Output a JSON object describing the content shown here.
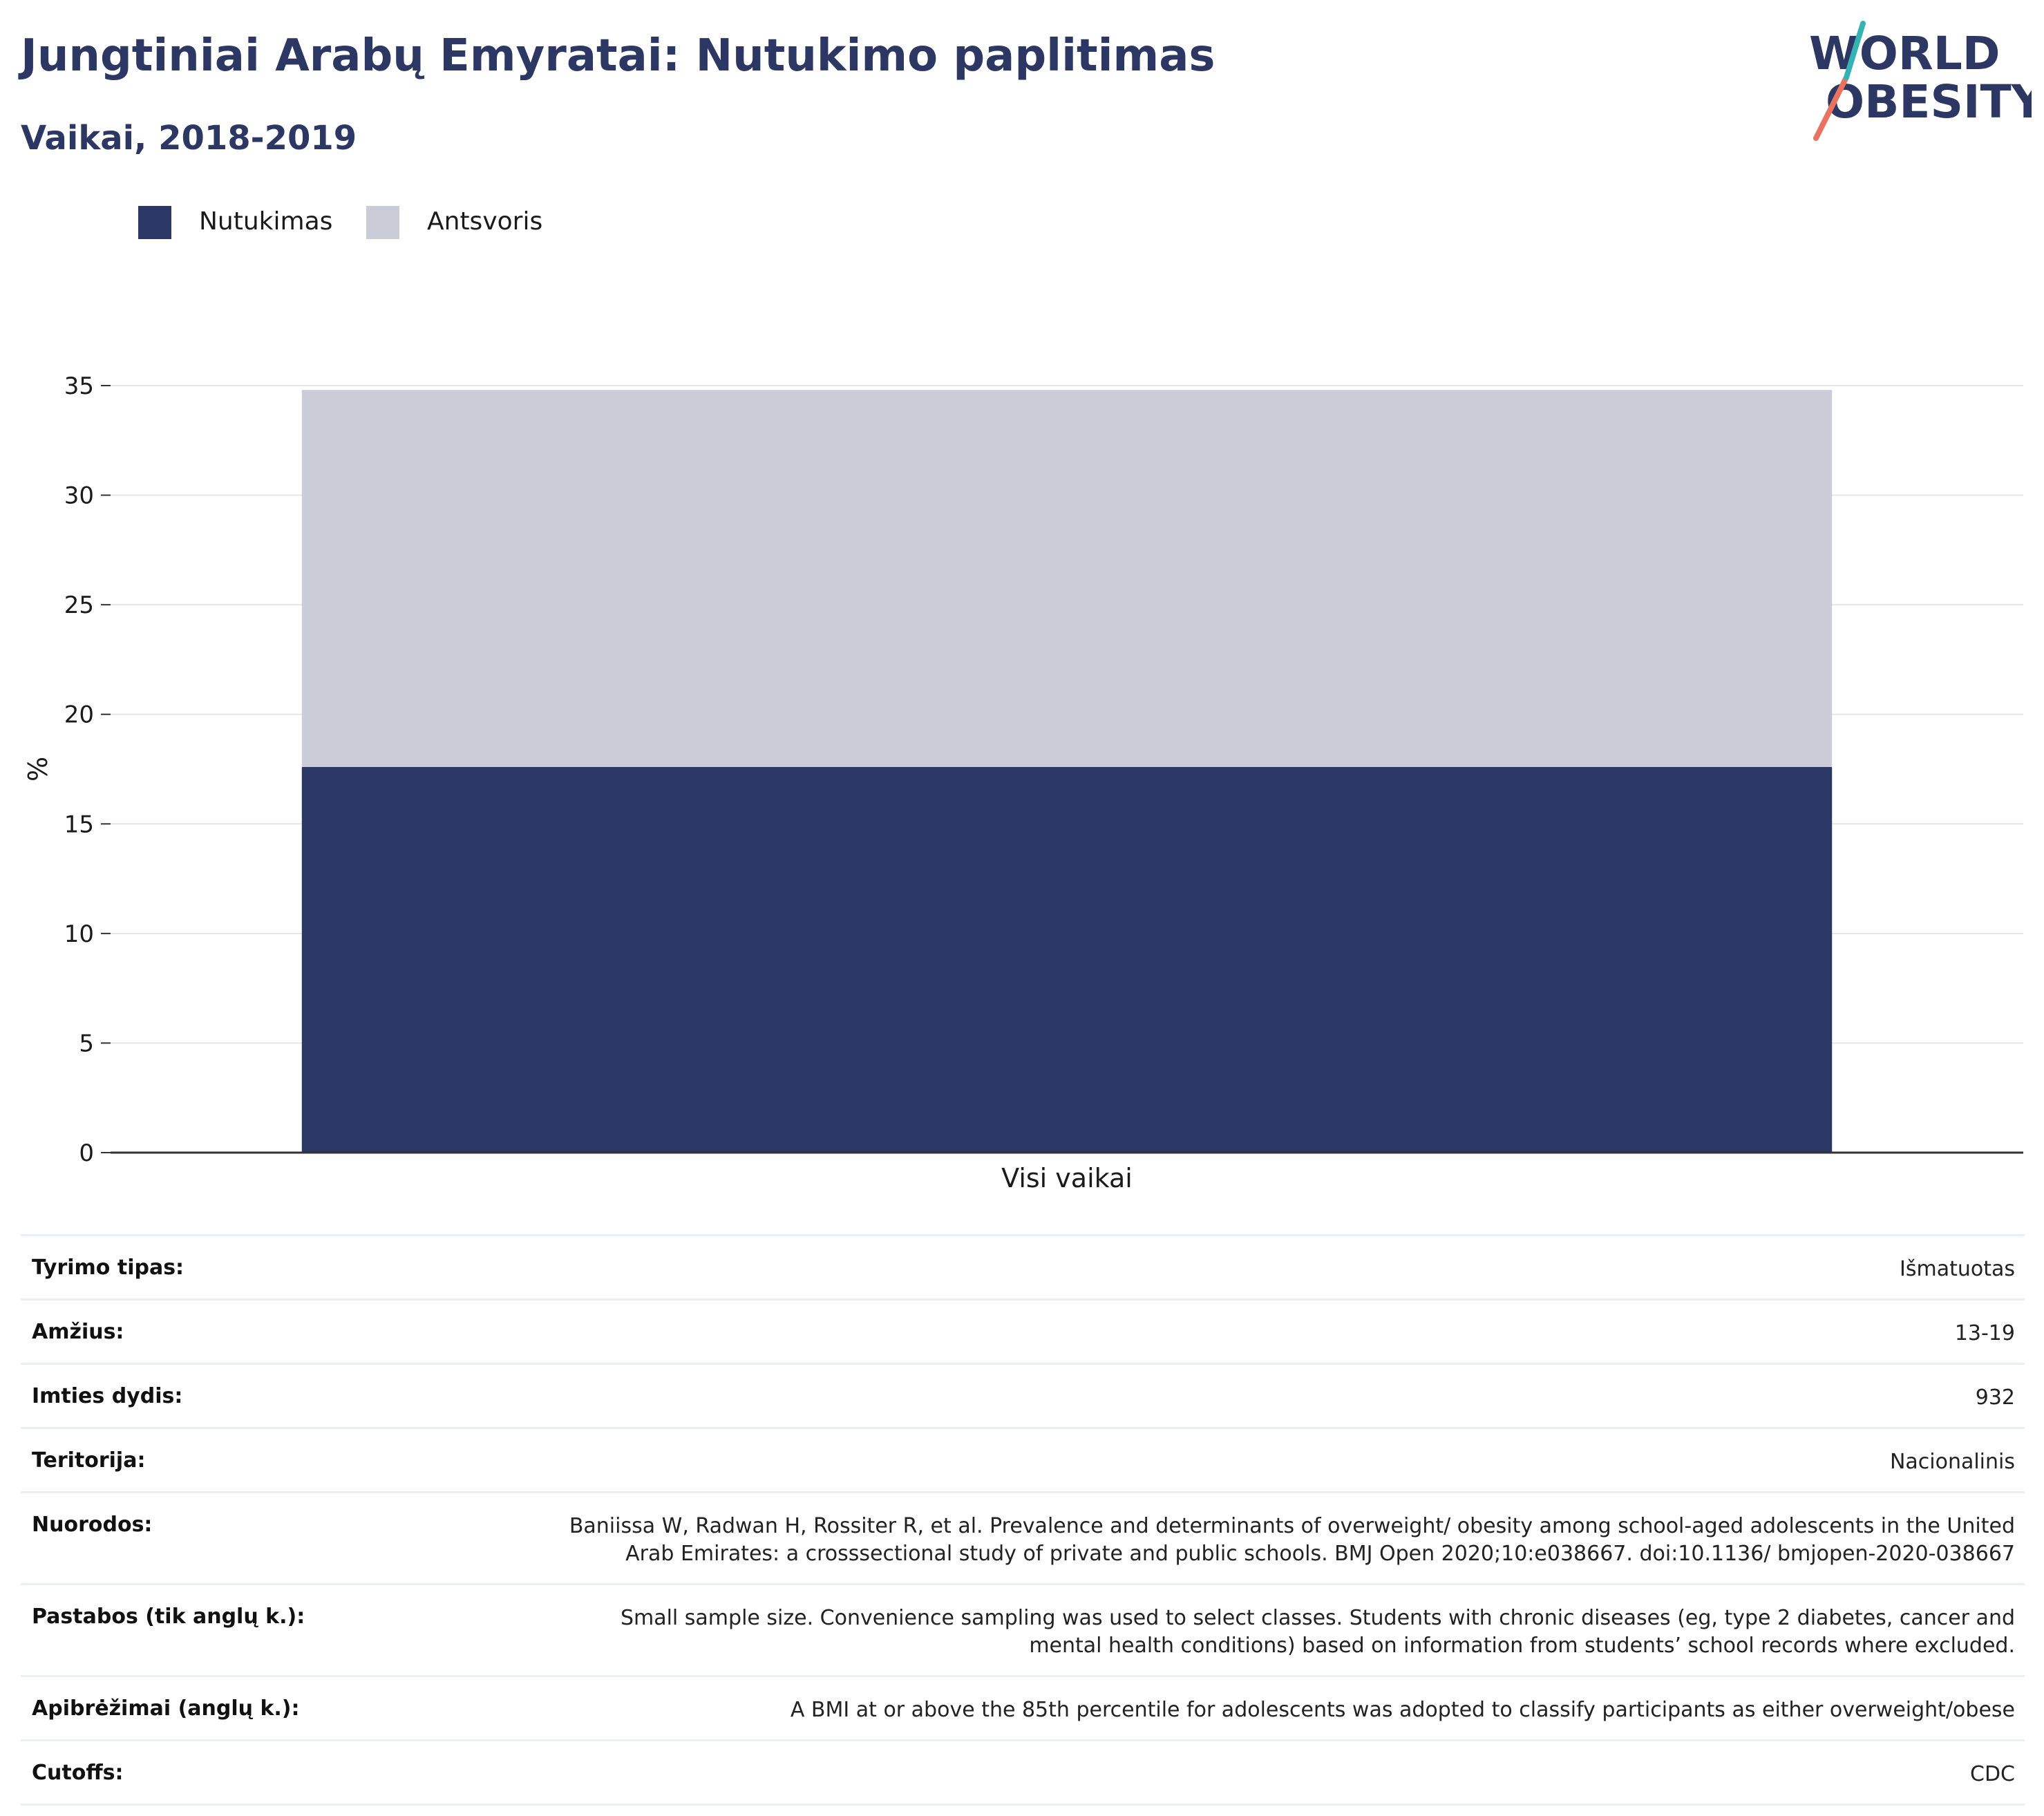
{
  "header": {
    "title": "Jungtiniai Arabų Emyratai: Nutukimo paplitimas",
    "subtitle": "Vaikai, 2018-2019"
  },
  "logo": {
    "line1": "WORLD",
    "line2": "OBESITY"
  },
  "colors": {
    "obesity": "#2b3764",
    "overweight": "#caccd8",
    "title": "#2c3764",
    "logo_teal": "#35b3b4",
    "logo_coral": "#e8735e"
  },
  "legend": [
    {
      "label": "Nutukimas",
      "color": "#2b3764"
    },
    {
      "label": "Antsvoris",
      "color": "#caccd8"
    }
  ],
  "chart_data": {
    "type": "bar",
    "stacked": true,
    "categories": [
      "Visi vaikai"
    ],
    "series": [
      {
        "name": "Nutukimas",
        "values": [
          17.6
        ]
      },
      {
        "name": "Antsvoris",
        "values": [
          17.2
        ]
      }
    ],
    "ylabel": "%",
    "xlabel": "",
    "ylim": [
      0,
      35
    ],
    "yticks": [
      0,
      5,
      10,
      15,
      20,
      25,
      30,
      35
    ],
    "grid": true,
    "legend_position": "top-left"
  },
  "meta": [
    {
      "label": "Tyrimo tipas:",
      "value": "Išmatuotas"
    },
    {
      "label": "Amžius:",
      "value": "13-19"
    },
    {
      "label": "Imties dydis:",
      "value": "932"
    },
    {
      "label": "Teritorija:",
      "value": "Nacionalinis"
    },
    {
      "label": "Nuorodos:",
      "value": "Baniissa W, Radwan H, Rossiter R, et al. Prevalence and determinants of overweight/ obesity among school-aged adolescents in the United Arab Emirates: a crosssectional study of private and public schools. BMJ Open 2020;10:e038667. doi:10.1136/ bmjopen-2020-038667"
    },
    {
      "label": "Pastabos (tik anglų k.):",
      "value": "Small sample size. Convenience sampling was used to select classes. Students with chronic diseases (eg, type 2 diabetes, cancer and mental health conditions) based on information from students’ school records where excluded."
    },
    {
      "label": "Apibrėžimai (anglų k.):",
      "value": "A BMI at or above the 85th percentile for adolescents was adopted to classify participants as either overweight/obese"
    },
    {
      "label": "Cutoffs:",
      "value": "CDC"
    }
  ]
}
